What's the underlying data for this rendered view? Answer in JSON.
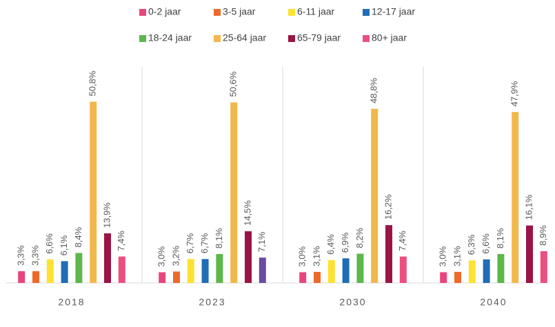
{
  "chart_data": {
    "type": "bar",
    "categories": [
      "2018",
      "2023",
      "2030",
      "2040"
    ],
    "series": [
      {
        "name": "0-2 jaar",
        "color": "#e8457f",
        "values": [
          3.3,
          3.0,
          3.0,
          3.0
        ],
        "value_labels": [
          "3,3%",
          "3,0%",
          "3,0%",
          "3,0%"
        ]
      },
      {
        "name": "3-5 jaar",
        "color": "#ed6a2a",
        "values": [
          3.3,
          3.2,
          3.1,
          3.1
        ],
        "value_labels": [
          "3,3%",
          "3,2%",
          "3,1%",
          "3,1%"
        ]
      },
      {
        "name": "6-11 jaar",
        "color": "#fde232",
        "values": [
          6.6,
          6.7,
          6.4,
          6.3
        ],
        "value_labels": [
          "6,6%",
          "6,7%",
          "6,4%",
          "6,3%"
        ]
      },
      {
        "name": "12-17 jaar",
        "color": "#1f6db5",
        "values": [
          6.1,
          6.7,
          6.9,
          6.6
        ],
        "value_labels": [
          "6,1%",
          "6,7%",
          "6,9%",
          "6,6%"
        ]
      },
      {
        "name": "18-24 jaar",
        "color": "#5cb84a",
        "values": [
          8.4,
          8.1,
          8.2,
          8.1
        ],
        "value_labels": [
          "8,4%",
          "8,1%",
          "8,2%",
          "8,1%"
        ]
      },
      {
        "name": "25-64 jaar",
        "color": "#f2b84b",
        "values": [
          50.8,
          50.6,
          48.8,
          47.9
        ],
        "value_labels": [
          "50,8%",
          "50,6%",
          "48,8%",
          "47,9%"
        ]
      },
      {
        "name": "65-79 jaar",
        "color": "#9b1446",
        "values": [
          13.9,
          14.5,
          16.2,
          16.1
        ],
        "value_labels": [
          "13,9%",
          "14,5%",
          "16,2%",
          "16,1%"
        ]
      },
      {
        "name": "80+ jaar",
        "color": "#ec4f7f",
        "colors": [
          "#ec4f7f",
          "#6a4ba0",
          "#ec4f7f",
          "#ec4f7f"
        ],
        "values": [
          7.4,
          7.1,
          7.4,
          8.9
        ],
        "value_labels": [
          "7,4%",
          "7,1%",
          "7,4%",
          "8,9%"
        ]
      }
    ],
    "ylim": [
      0,
      60
    ]
  }
}
